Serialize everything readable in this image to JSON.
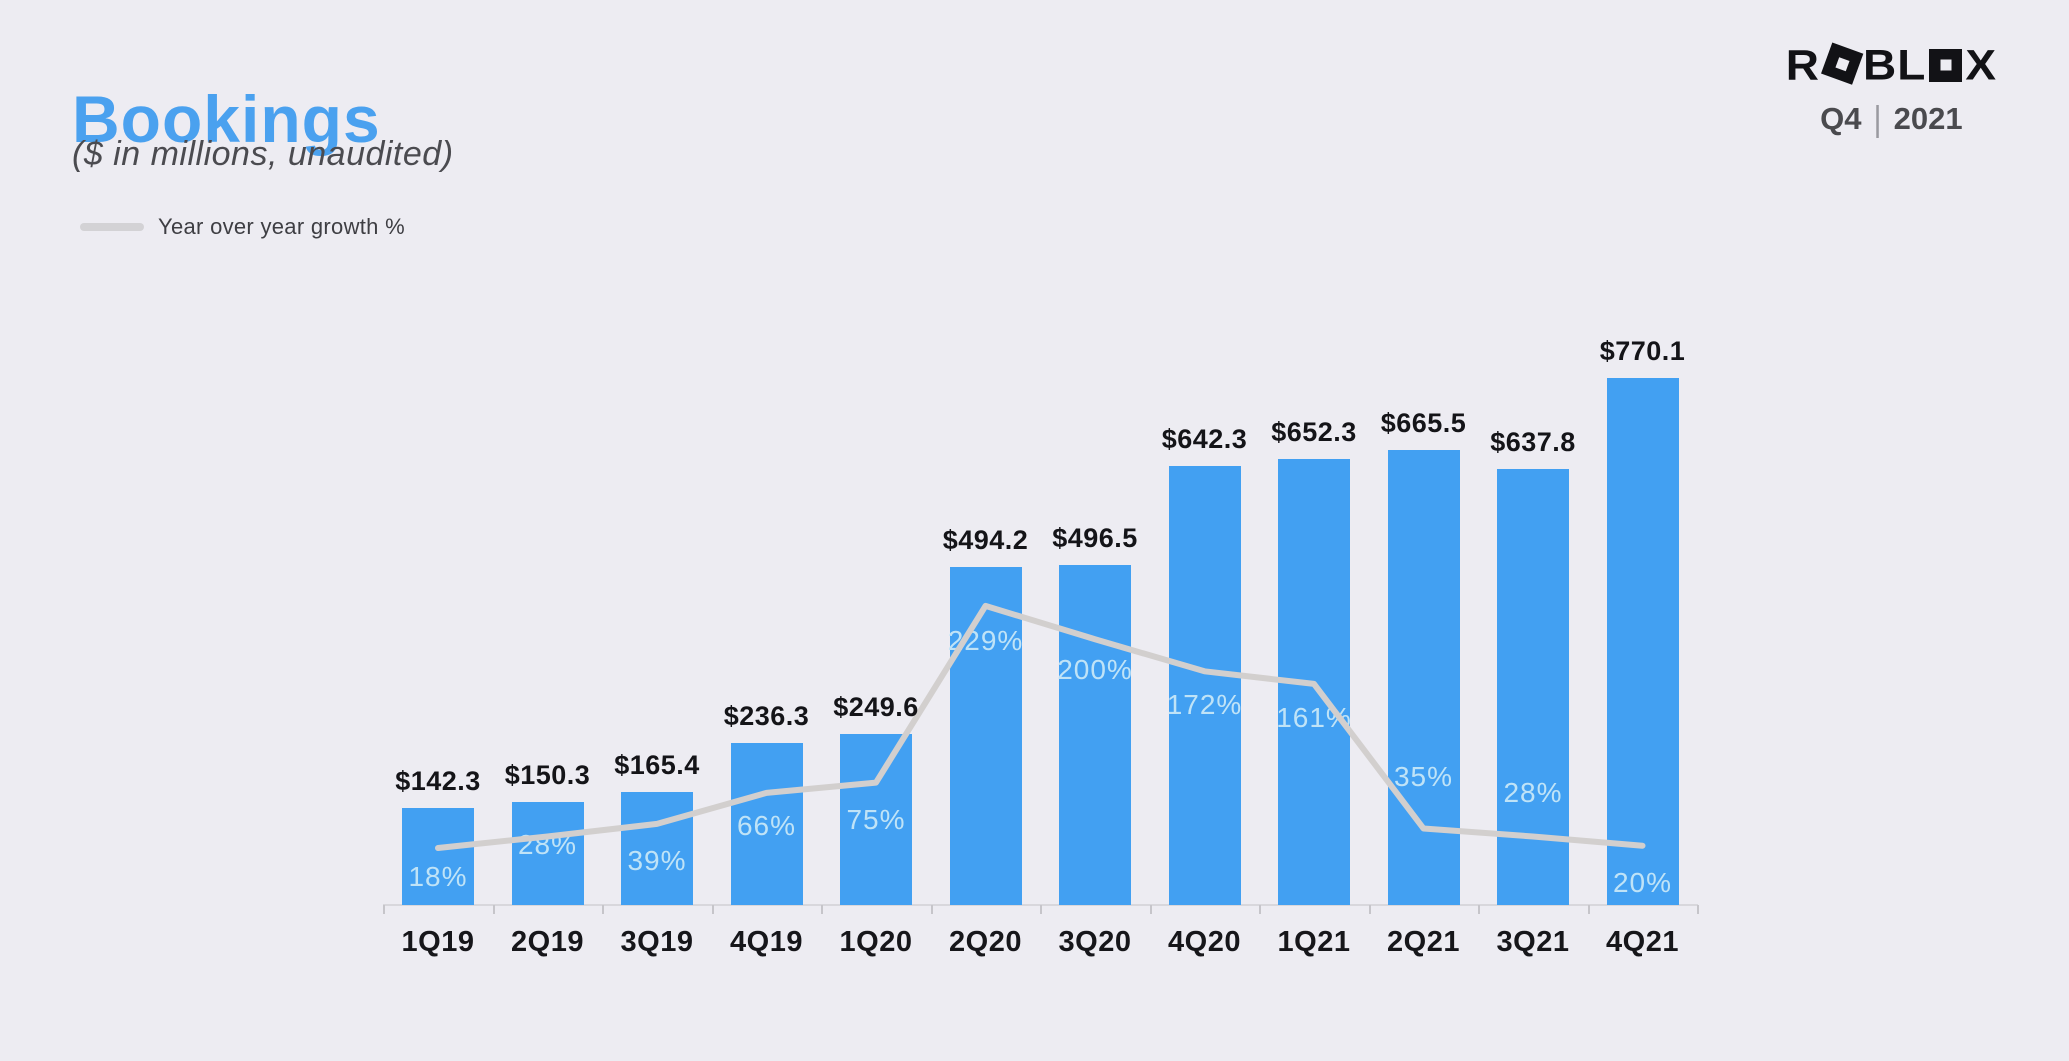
{
  "header": {
    "title": "Bookings",
    "subtitle": "($ in millions,  unaudited)"
  },
  "legend": {
    "label": "Year over year growth %"
  },
  "branding": {
    "logo": {
      "part1": "R",
      "part2": "BL",
      "part3": "X",
      "alt": "ROBLOX"
    },
    "period": {
      "quarter": "Q4",
      "separator": "|",
      "year": "2021"
    }
  },
  "colors": {
    "background": "#edecf2",
    "bar": "#42a0f2",
    "line": "#d2cfce",
    "title": "#4aa1ef",
    "subtitle": "#4b4b50",
    "legend_swatch": "#d3d2d5",
    "legend_text": "#3e3e43",
    "value_label": "#141418",
    "growth_label": "#bfe3f7",
    "axis_label": "#16161a",
    "axis_line": "#d8d7dc",
    "tick": "#c6c5ca",
    "logo": "#121216",
    "period_text": "#4a4a4e",
    "period_sep": "#9a9aa0"
  },
  "chart_data": {
    "type": "bar",
    "title": "Bookings",
    "subtitle": "($ in millions,  unaudited)",
    "xlabel": "",
    "ylabel": "$ in millions",
    "ylim": [
      0,
      790
    ],
    "grid": false,
    "legend_position": "top-left",
    "categories": [
      "1Q19",
      "2Q19",
      "3Q19",
      "4Q19",
      "1Q20",
      "2Q20",
      "3Q20",
      "4Q20",
      "1Q21",
      "2Q21",
      "3Q21",
      "4Q21"
    ],
    "series": [
      {
        "name": "Bookings ($ in millions)",
        "type": "bar",
        "values": [
          142.3,
          150.3,
          165.4,
          236.3,
          249.6,
          494.2,
          496.5,
          642.3,
          652.3,
          665.5,
          637.8,
          770.1
        ],
        "labels": [
          "$142.3",
          "$150.3",
          "$165.4",
          "$236.3",
          "$249.6",
          "$494.2",
          "$496.5",
          "$642.3",
          "$652.3",
          "$665.5",
          "$637.8",
          "$770.1"
        ]
      },
      {
        "name": "Year over year growth %",
        "type": "line",
        "values": [
          18,
          28,
          39,
          66,
          75,
          229,
          200,
          172,
          161,
          35,
          28,
          20
        ],
        "labels": [
          "18%",
          "28%",
          "39%",
          "66%",
          "75%",
          "229%",
          "200%",
          "172%",
          "161%",
          "35%",
          "28%",
          "20%"
        ]
      }
    ],
    "growth_label_dy": [
      30,
      10,
      38,
      34,
      38,
      36,
      32,
      35,
      35,
      -50,
      -42,
      38
    ]
  }
}
